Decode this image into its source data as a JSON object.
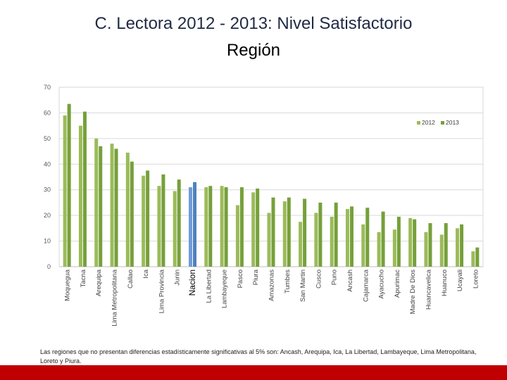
{
  "header": {
    "title": "C. Lectora 2012 - 2013: Nivel Satisfactorio",
    "subtitle": "Región"
  },
  "chart_data": {
    "type": "bar",
    "title": "",
    "xlabel": "",
    "ylabel": "",
    "ylim": [
      0,
      70
    ],
    "yticks": [
      0,
      10,
      20,
      30,
      40,
      50,
      60,
      70
    ],
    "grid": true,
    "legend_position": "top-right",
    "highlight_category": "Nacion",
    "categories": [
      "Moquegua",
      "Tacna",
      "Arequipa",
      "Lima Metropolitana",
      "Callao",
      "Ica",
      "Lima Provincia",
      "Junin",
      "Nacion",
      "La Libertad",
      "Lambayeque",
      "Pasco",
      "Piura",
      "Amazonas",
      "Tumbes",
      "San Martin",
      "Cusco",
      "Puno",
      "Ancash",
      "Cajamarca",
      "Ayacucho",
      "Apurimac",
      "Madre De Dios",
      "Huancavelica",
      "Huanuco",
      "Ucayali",
      "Loreto"
    ],
    "series": [
      {
        "name": "2012",
        "color": "#9bbb59",
        "highlight_color": "#6f9bd6",
        "values": [
          59,
          55,
          50,
          48,
          44.5,
          35.5,
          31.5,
          29.5,
          31,
          31,
          31.5,
          24,
          29,
          21,
          25.5,
          17.5,
          21,
          19.5,
          22.5,
          16.5,
          13.5,
          14.5,
          19,
          13.5,
          12.5,
          15,
          6
        ]
      },
      {
        "name": "2013",
        "color": "#76a03a",
        "highlight_color": "#4f81bd",
        "values": [
          63.5,
          60.5,
          47,
          46,
          41,
          37.5,
          36,
          34,
          33,
          31.5,
          31,
          31,
          30.5,
          27,
          27,
          26.5,
          25,
          25,
          23.5,
          23,
          21.5,
          19.5,
          18.5,
          17,
          17,
          16.5,
          7.5
        ]
      }
    ]
  },
  "footnote": "Las regiones que no presentan diferencias estadísticamente significativas al 5% son: Ancash, Arequipa, Ica, La Libertad, Lambayeque, Lima Metropolitana, Loreto y Piura."
}
